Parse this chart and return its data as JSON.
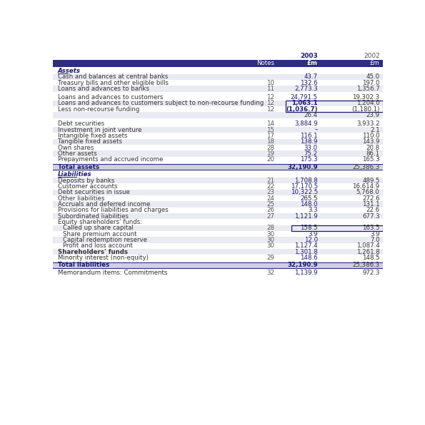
{
  "header_notes": "Notes",
  "header_2003": "2003",
  "header_2002": "2002",
  "header_unit_2003": "£m",
  "header_unit_2002": "£m",
  "background_color": "#ffffff",
  "header_bg": "#2e2e7e",
  "section_label_color": "#1a1a6e",
  "bold_2003_color": "#1a1a6e",
  "rows": [
    {
      "label": "Assets",
      "notes": "",
      "v2003": "",
      "v2002": "",
      "type": "section_header",
      "indent": 0
    },
    {
      "label": "Cash and balances at central banks",
      "notes": "",
      "v2003": "43.7",
      "v2002": "45.0",
      "type": "normal",
      "indent": 0
    },
    {
      "label": "Treasury bills and other eligible bills",
      "notes": "10",
      "v2003": "132.6",
      "v2002": "197.0",
      "type": "normal",
      "indent": 0
    },
    {
      "label": "Loans and advances to banks",
      "notes": "11",
      "v2003": "2,773.3",
      "v2002": "1,356.7",
      "type": "normal",
      "indent": 0
    },
    {
      "label": "",
      "notes": "",
      "v2003": "",
      "v2002": "",
      "type": "spacer",
      "indent": 0
    },
    {
      "label": "Loans and advances to customers",
      "notes": "12",
      "v2003": "24,791.5",
      "v2002": "19,302.3",
      "type": "normal",
      "indent": 0
    },
    {
      "label": "Loans and advances to customers subject to non-recourse funding",
      "notes": "12",
      "v2003": "1,063.1",
      "v2002": "1,204.0",
      "type": "boxed",
      "indent": 0
    },
    {
      "label": "Less non-recourse funding",
      "notes": "12",
      "v2003": "(1,036.7)",
      "v2002": "(1,180.1)",
      "type": "boxed_last",
      "indent": 0
    },
    {
      "label": "",
      "notes": "",
      "v2003": "26.4",
      "v2002": "23.9",
      "type": "subtotal",
      "indent": 0
    },
    {
      "label": "",
      "notes": "",
      "v2003": "",
      "v2002": "",
      "type": "spacer",
      "indent": 0
    },
    {
      "label": "Debt securities",
      "notes": "14",
      "v2003": "3,884.9",
      "v2002": "3,933.2",
      "type": "normal",
      "indent": 0
    },
    {
      "label": "Investment in joint venture",
      "notes": "15",
      "v2003": "–",
      "v2002": "2.1",
      "type": "normal",
      "indent": 0
    },
    {
      "label": "Intangible fixed assets",
      "notes": "17",
      "v2003": "116.1",
      "v2002": "110.0",
      "type": "normal",
      "indent": 0
    },
    {
      "label": "Tangible fixed assets",
      "notes": "18",
      "v2003": "138.9",
      "v2002": "143.9",
      "type": "normal",
      "indent": 0
    },
    {
      "label": "Own shares",
      "notes": "28",
      "v2003": "33.0",
      "v2002": "20.8",
      "type": "normal",
      "indent": 0
    },
    {
      "label": "Other assets",
      "notes": "19",
      "v2003": "75.2",
      "v2002": "86.1",
      "type": "normal",
      "indent": 0
    },
    {
      "label": "Prepayments and accrued income",
      "notes": "20",
      "v2003": "175.3",
      "v2002": "165.3",
      "type": "normal",
      "indent": 0
    },
    {
      "label": "",
      "notes": "",
      "v2003": "",
      "v2002": "",
      "type": "spacer_small",
      "indent": 0
    },
    {
      "label": "Total assets",
      "notes": "",
      "v2003": "32,190.9",
      "v2002": "25,386.3",
      "type": "total",
      "indent": 0
    },
    {
      "label": "",
      "notes": "",
      "v2003": "",
      "v2002": "",
      "type": "spacer_small",
      "indent": 0
    },
    {
      "label": "Liabilities",
      "notes": "",
      "v2003": "",
      "v2002": "",
      "type": "section_header",
      "indent": 0
    },
    {
      "label": "Deposits by banks",
      "notes": "21",
      "v2003": "1,708.8",
      "v2002": "489.5",
      "type": "normal",
      "indent": 0
    },
    {
      "label": "Customer accounts",
      "notes": "22",
      "v2003": "17,170.5",
      "v2002": "16,614.9",
      "type": "normal",
      "indent": 0
    },
    {
      "label": "Debt securities in issue",
      "notes": "23",
      "v2003": "10,322.5",
      "v2002": "5,768.0",
      "type": "normal",
      "indent": 0
    },
    {
      "label": "Other liabilities",
      "notes": "24",
      "v2003": "265.5",
      "v2002": "272.6",
      "type": "normal",
      "indent": 0
    },
    {
      "label": "Accruals and deferred income",
      "notes": "25",
      "v2003": "148.0",
      "v2002": "131.1",
      "type": "normal",
      "indent": 0
    },
    {
      "label": "Provisions for liabilities and charges",
      "notes": "26",
      "v2003": "3.3",
      "v2002": "22.6",
      "type": "normal",
      "indent": 0
    },
    {
      "label": "Subordinated liabilities",
      "notes": "27",
      "v2003": "1,121.9",
      "v2002": "677.3",
      "type": "normal",
      "indent": 0
    },
    {
      "label": "Equity shareholders' funds:",
      "notes": "",
      "v2003": "",
      "v2002": "",
      "type": "subheader",
      "indent": 0
    },
    {
      "label": "Called up share capital",
      "notes": "28",
      "v2003": "158.5",
      "v2002": "163.5",
      "type": "equity_boxed",
      "indent": 1
    },
    {
      "label": "Share premium account",
      "notes": "30",
      "v2003": "3.9",
      "v2002": "3.9",
      "type": "normal",
      "indent": 1
    },
    {
      "label": "Capital redemption reserve",
      "notes": "30",
      "v2003": "12.0",
      "v2002": "7.0",
      "type": "normal",
      "indent": 1
    },
    {
      "label": "Profit and loss account",
      "notes": "30",
      "v2003": "1,127.4",
      "v2002": "1,087.4",
      "type": "normal",
      "indent": 1
    },
    {
      "label": "Shareholders' funds",
      "notes": "",
      "v2003": "1,301.8",
      "v2002": "1,261.8",
      "type": "normal_bold_label",
      "indent": 0
    },
    {
      "label": "Minority interest (non-equity)",
      "notes": "29",
      "v2003": "148.6",
      "v2002": "148.5",
      "type": "normal",
      "indent": 0
    },
    {
      "label": "",
      "notes": "",
      "v2003": "",
      "v2002": "",
      "type": "spacer_small",
      "indent": 0
    },
    {
      "label": "Total liabilities",
      "notes": "",
      "v2003": "32,190.9",
      "v2002": "25,386.3",
      "type": "total",
      "indent": 0
    },
    {
      "label": "",
      "notes": "",
      "v2003": "",
      "v2002": "",
      "type": "spacer_small",
      "indent": 0
    },
    {
      "label": "Memorandum items: Commitments",
      "notes": "32",
      "v2003": "1,139.9",
      "v2002": "972.3",
      "type": "normal",
      "indent": 0
    }
  ]
}
